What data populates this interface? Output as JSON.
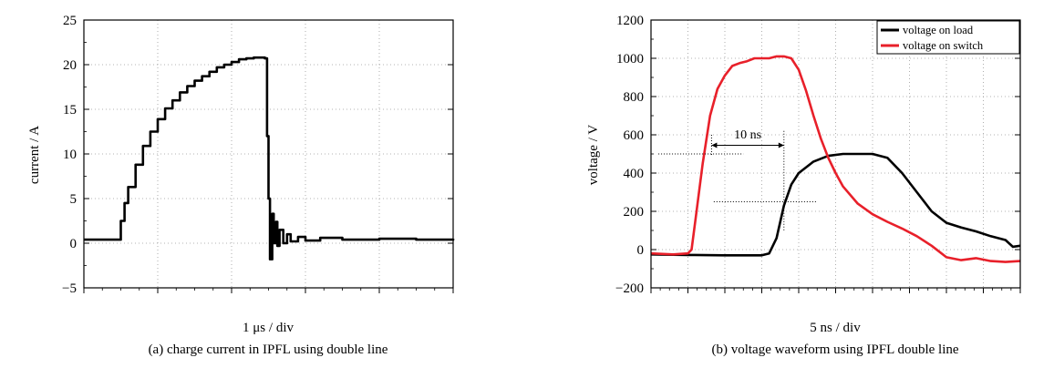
{
  "chart_data": [
    {
      "type": "line",
      "ylabel": "current / A",
      "xlabel": "1 μs / div",
      "caption": "(a) charge current in IPFL using double line",
      "ylim": [
        -5,
        25
      ],
      "yticks": [
        -5,
        0,
        5,
        10,
        15,
        20,
        25
      ],
      "xlim": [
        0,
        5
      ],
      "x_divisions": 5,
      "grid": true,
      "series": [
        {
          "color": "#000000",
          "x": [
            0,
            0.45,
            0.5,
            0.55,
            0.6,
            0.7,
            0.8,
            0.9,
            1.0,
            1.1,
            1.2,
            1.3,
            1.4,
            1.5,
            1.6,
            1.7,
            1.8,
            1.9,
            2.0,
            2.1,
            2.2,
            2.3,
            2.4,
            2.45,
            2.48,
            2.5,
            2.52,
            2.55,
            2.57,
            2.6,
            2.62,
            2.65,
            2.7,
            2.75,
            2.8,
            2.9,
            3.0,
            3.2,
            3.5,
            4.0,
            4.5,
            5.0
          ],
          "y": [
            0.4,
            0.4,
            2.5,
            4.5,
            6.3,
            8.8,
            10.9,
            12.5,
            13.9,
            15.1,
            16.0,
            16.9,
            17.6,
            18.2,
            18.7,
            19.2,
            19.7,
            20.0,
            20.3,
            20.6,
            20.7,
            20.8,
            20.8,
            20.7,
            12.0,
            5.0,
            -1.8,
            3.3,
            0.0,
            2.4,
            -0.3,
            1.5,
            0.0,
            1.0,
            0.2,
            0.7,
            0.3,
            0.6,
            0.4,
            0.5,
            0.4,
            0.5
          ]
        }
      ]
    },
    {
      "type": "line",
      "ylabel": "voltage / V",
      "xlabel": "5 ns / div",
      "caption": "(b) voltage waveform using IPFL double line",
      "ylim": [
        -200,
        1200
      ],
      "yticks": [
        -200,
        0,
        200,
        400,
        600,
        800,
        1000,
        1200
      ],
      "xlim": [
        0,
        50
      ],
      "x_divisions": 10,
      "grid": true,
      "legend": "top-right",
      "annotation": "10 ns",
      "series": [
        {
          "name": "voltage on load",
          "color": "#000000",
          "x": [
            0,
            5,
            10,
            15,
            16,
            17,
            18,
            19,
            20,
            22,
            24,
            26,
            28,
            30,
            32,
            34,
            36,
            38,
            40,
            42,
            44,
            46,
            48,
            49,
            50
          ],
          "y": [
            -25,
            -28,
            -30,
            -30,
            -20,
            60,
            230,
            340,
            400,
            460,
            490,
            500,
            500,
            500,
            480,
            400,
            300,
            200,
            140,
            115,
            95,
            70,
            50,
            15,
            20
          ]
        },
        {
          "name": "voltage on switch",
          "color": "#e8202a",
          "x": [
            0,
            3,
            5,
            5.5,
            6,
            7,
            8,
            9,
            10,
            11,
            12,
            13,
            14,
            15,
            16,
            17,
            18,
            19,
            20,
            21,
            22,
            23,
            24,
            25,
            26,
            28,
            30,
            32,
            34,
            36,
            38,
            40,
            42,
            44,
            46,
            48,
            50
          ],
          "y": [
            -20,
            -25,
            -20,
            0,
            150,
            450,
            700,
            840,
            910,
            960,
            975,
            985,
            1000,
            1000,
            1000,
            1010,
            1010,
            1000,
            940,
            830,
            700,
            580,
            480,
            400,
            330,
            240,
            185,
            145,
            110,
            70,
            20,
            -40,
            -55,
            -45,
            -60,
            -65,
            -60
          ]
        }
      ]
    }
  ]
}
